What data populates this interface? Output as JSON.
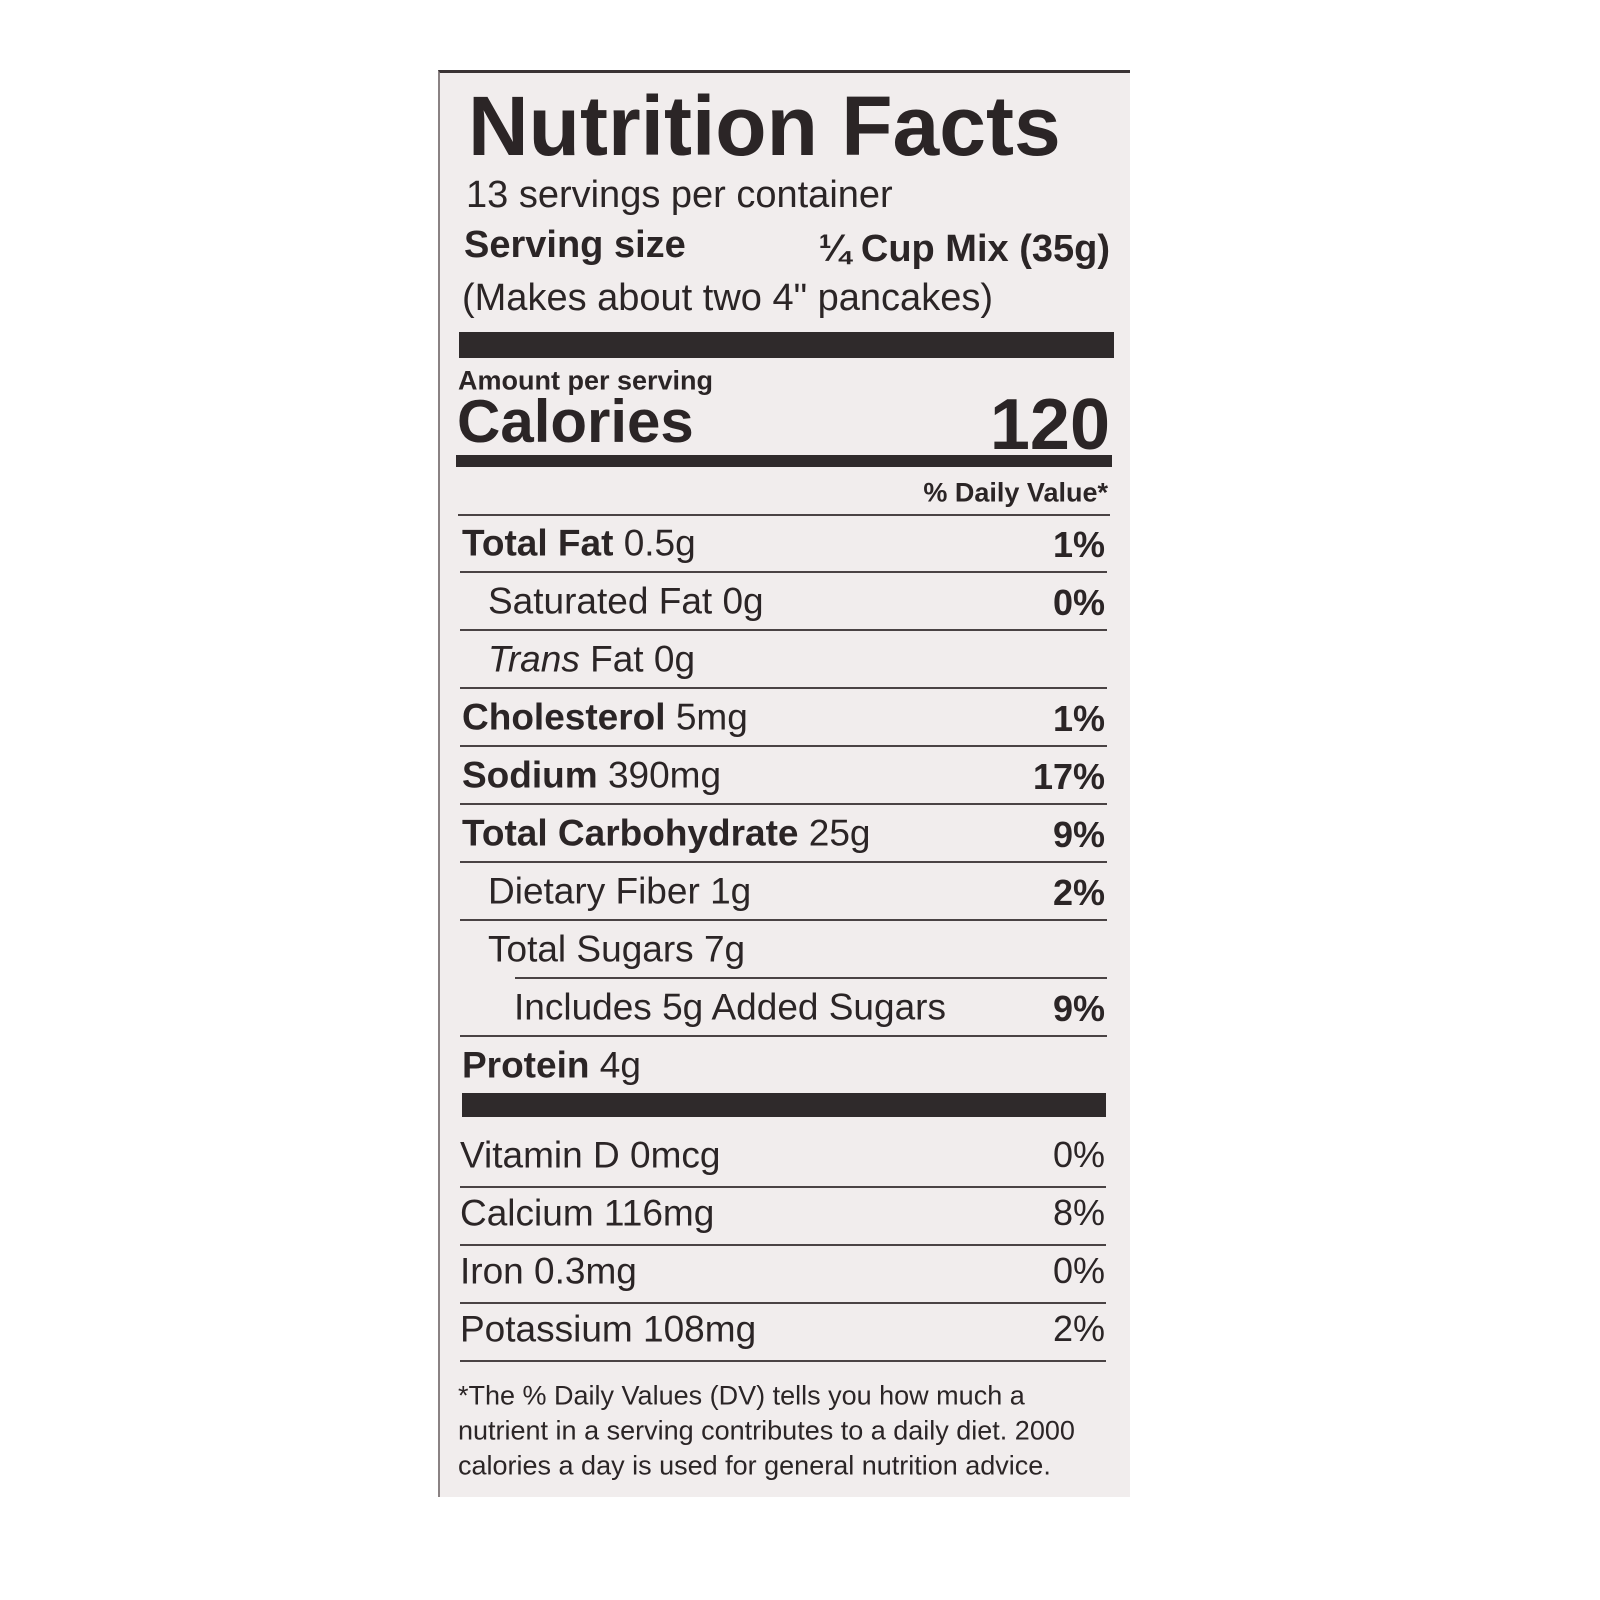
{
  "title": "Nutrition Facts",
  "servings": "13 servings per container",
  "serving_size": {
    "label": "Serving size",
    "value": "¼ Cup Mix (35g)"
  },
  "serving_note": "(Makes about two 4\" pancakes)",
  "amount_per_serving": "Amount per serving",
  "calories": {
    "label": "Calories",
    "value": 120
  },
  "daily_value_header": "% Daily Value*",
  "nutrients": [
    {
      "name": "Total Fat",
      "amount": "0.5g",
      "dv": "1%",
      "bold": true,
      "indent": 0
    },
    {
      "name": "Saturated Fat",
      "amount": "0g",
      "dv": "0%",
      "bold": false,
      "indent": 1
    },
    {
      "name_italic": "Trans",
      "name": "Fat",
      "amount": "0g",
      "bold": false,
      "indent": 1
    },
    {
      "name": "Cholesterol",
      "amount": "5mg",
      "dv": "1%",
      "bold": true,
      "indent": 0
    },
    {
      "name": "Sodium",
      "amount": "390mg",
      "dv": "17%",
      "bold": true,
      "indent": 0
    },
    {
      "name": "Total Carbohydrate",
      "amount": "25g",
      "dv": "9%",
      "bold": true,
      "indent": 0
    },
    {
      "name": "Dietary Fiber",
      "amount": "1g",
      "dv": "2%",
      "bold": false,
      "indent": 1
    },
    {
      "name": "Total Sugars",
      "amount": "7g",
      "bold": false,
      "indent": 1
    },
    {
      "name": "Includes 5g Added Sugars",
      "dv": "9%",
      "bold": false,
      "indent": 2
    },
    {
      "name": "Protein",
      "amount": "4g",
      "bold": true,
      "indent": 0
    }
  ],
  "vitamins": [
    {
      "name": "Vitamin D",
      "amount": "0mcg",
      "dv": "0%"
    },
    {
      "name": "Calcium",
      "amount": "116mg",
      "dv": "8%"
    },
    {
      "name": "Iron",
      "amount": "0.3mg",
      "dv": "0%"
    },
    {
      "name": "Potassium",
      "amount": "108mg",
      "dv": "2%"
    }
  ],
  "footnote": [
    "*The % Daily Values (DV) tells you how much a",
    "nutrient in a serving contributes to a daily diet. 2000",
    "calories a day is used for general nutrition advice."
  ]
}
